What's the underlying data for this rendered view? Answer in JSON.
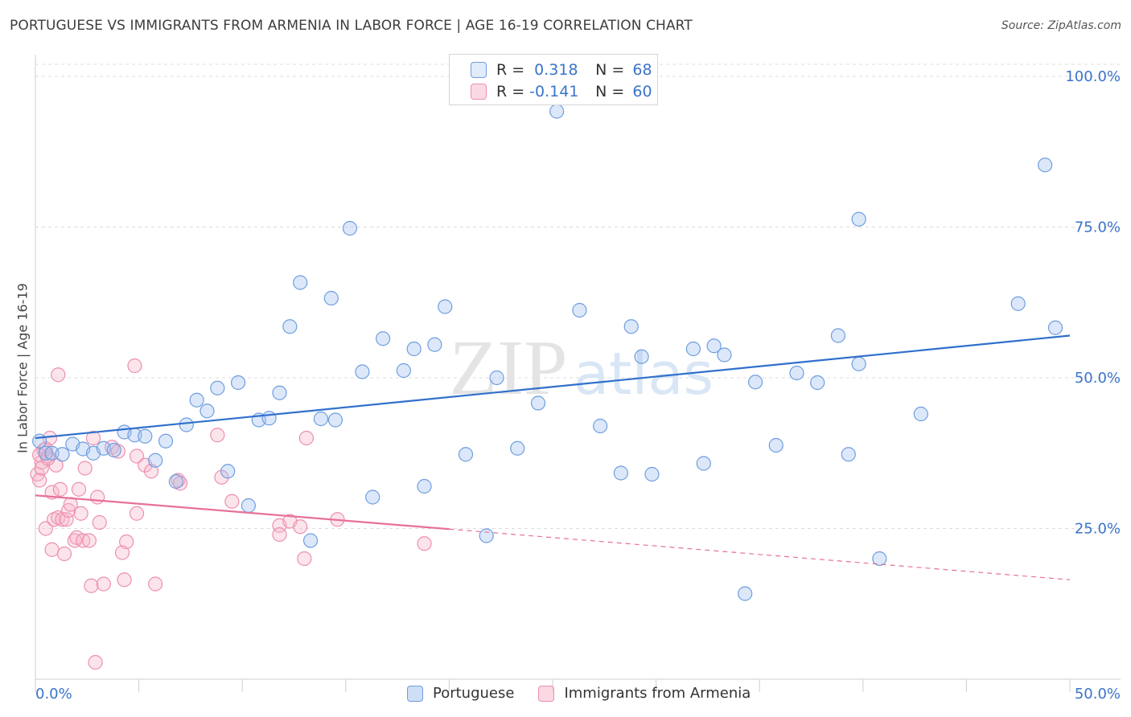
{
  "title": "PORTUGUESE VS IMMIGRANTS FROM ARMENIA IN LABOR FORCE | AGE 16-19 CORRELATION CHART",
  "source": "Source: ZipAtlas.com",
  "watermark": {
    "zip": "ZIP",
    "atlas": "atlas"
  },
  "legend": {
    "r_label": "R =",
    "n_label": "N =",
    "series": [
      {
        "name": "Portuguese",
        "r": "0.318",
        "n": "68",
        "color": "#a4c2ef",
        "stroke": "#6e9de0",
        "line": "#3070cc"
      },
      {
        "name": "Immigrants from Armenia",
        "r": "-0.141",
        "n": "60",
        "color": "#f7b8cb",
        "stroke": "#ec8fae",
        "line": "#e8709a"
      }
    ]
  },
  "chart_data": {
    "type": "scatter",
    "title": "PORTUGUESE VS IMMIGRANTS FROM ARMENIA IN LABOR FORCE | AGE 16-19 CORRELATION CHART",
    "xlabel": "",
    "ylabel": "In Labor Force | Age 16-19",
    "xlim": [
      0,
      50
    ],
    "ylim": [
      0,
      102
    ],
    "x_tick_labels": [
      "0.0%",
      "50.0%"
    ],
    "y_ticks": [
      25,
      50,
      75,
      100
    ],
    "y_tick_labels": [
      "25.0%",
      "50.0%",
      "75.0%",
      "100.0%"
    ],
    "grid": true,
    "series": [
      {
        "name": "Portuguese",
        "trend": {
          "x": [
            0,
            50
          ],
          "y": [
            40.0,
            57.0
          ],
          "dashed_from": null
        },
        "points": [
          [
            0.2,
            39.5
          ],
          [
            0.5,
            37.5
          ],
          [
            0.8,
            37.5
          ],
          [
            1.3,
            37.3
          ],
          [
            1.8,
            39.0
          ],
          [
            2.3,
            38.2
          ],
          [
            2.8,
            37.5
          ],
          [
            3.3,
            38.3
          ],
          [
            3.8,
            38.0
          ],
          [
            4.3,
            41.0
          ],
          [
            4.8,
            40.5
          ],
          [
            5.3,
            40.3
          ],
          [
            5.8,
            36.3
          ],
          [
            6.3,
            39.5
          ],
          [
            6.8,
            32.8
          ],
          [
            7.3,
            42.2
          ],
          [
            7.8,
            46.3
          ],
          [
            8.3,
            44.5
          ],
          [
            8.8,
            48.3
          ],
          [
            9.3,
            34.5
          ],
          [
            9.8,
            49.2
          ],
          [
            10.3,
            28.8
          ],
          [
            10.8,
            43.0
          ],
          [
            11.3,
            43.3
          ],
          [
            11.8,
            47.5
          ],
          [
            12.3,
            58.5
          ],
          [
            12.8,
            65.8
          ],
          [
            13.3,
            23.0
          ],
          [
            13.8,
            43.2
          ],
          [
            14.3,
            63.2
          ],
          [
            14.5,
            43.0
          ],
          [
            15.2,
            74.8
          ],
          [
            15.8,
            51.0
          ],
          [
            16.3,
            30.2
          ],
          [
            16.8,
            56.5
          ],
          [
            17.8,
            51.2
          ],
          [
            18.3,
            54.8
          ],
          [
            18.8,
            32.0
          ],
          [
            19.3,
            55.5
          ],
          [
            19.8,
            61.8
          ],
          [
            20.8,
            37.3
          ],
          [
            21.8,
            23.8
          ],
          [
            22.3,
            50.0
          ],
          [
            23.3,
            38.3
          ],
          [
            24.3,
            45.8
          ],
          [
            25.2,
            94.2
          ],
          [
            26.3,
            61.2
          ],
          [
            27.3,
            42.0
          ],
          [
            28.3,
            34.2
          ],
          [
            28.8,
            58.5
          ],
          [
            29.3,
            53.5
          ],
          [
            29.8,
            34.0
          ],
          [
            31.8,
            54.8
          ],
          [
            32.3,
            35.8
          ],
          [
            32.8,
            55.3
          ],
          [
            33.3,
            53.8
          ],
          [
            34.3,
            14.2
          ],
          [
            34.8,
            49.3
          ],
          [
            35.8,
            38.8
          ],
          [
            36.8,
            50.8
          ],
          [
            37.8,
            49.2
          ],
          [
            38.8,
            57.0
          ],
          [
            39.3,
            37.3
          ],
          [
            39.8,
            52.3
          ],
          [
            39.8,
            76.3
          ],
          [
            40.8,
            20.0
          ],
          [
            42.8,
            44.0
          ],
          [
            47.5,
            62.3
          ],
          [
            48.8,
            85.3
          ],
          [
            49.3,
            58.3
          ]
        ]
      },
      {
        "name": "Immigrants from Armenia",
        "trend": {
          "x": [
            0,
            50
          ],
          "y": [
            30.5,
            16.5
          ],
          "dashed_from": 20.0
        },
        "points": [
          [
            0.1,
            34.0
          ],
          [
            0.2,
            33.0
          ],
          [
            0.3,
            36.0
          ],
          [
            0.3,
            35.0
          ],
          [
            0.4,
            38.0
          ],
          [
            0.5,
            25.0
          ],
          [
            0.6,
            37.0
          ],
          [
            0.7,
            40.0
          ],
          [
            0.8,
            21.5
          ],
          [
            0.8,
            31.0
          ],
          [
            0.9,
            26.5
          ],
          [
            1.0,
            35.5
          ],
          [
            1.1,
            50.5
          ],
          [
            1.1,
            26.8
          ],
          [
            1.2,
            31.5
          ],
          [
            1.3,
            26.5
          ],
          [
            1.4,
            20.8
          ],
          [
            1.5,
            26.5
          ],
          [
            1.6,
            28.0
          ],
          [
            1.7,
            29.0
          ],
          [
            1.9,
            23.0
          ],
          [
            2.0,
            23.5
          ],
          [
            2.1,
            31.5
          ],
          [
            2.2,
            27.5
          ],
          [
            2.3,
            23.0
          ],
          [
            2.4,
            35.0
          ],
          [
            2.6,
            23.0
          ],
          [
            2.7,
            15.5
          ],
          [
            2.8,
            40.0
          ],
          [
            2.9,
            2.8
          ],
          [
            3.0,
            30.2
          ],
          [
            3.1,
            26.0
          ],
          [
            3.3,
            15.8
          ],
          [
            3.7,
            38.5
          ],
          [
            4.0,
            37.8
          ],
          [
            4.2,
            21.0
          ],
          [
            4.3,
            16.5
          ],
          [
            4.4,
            22.8
          ],
          [
            4.8,
            52.0
          ],
          [
            4.9,
            27.5
          ],
          [
            4.9,
            37.0
          ],
          [
            5.3,
            35.5
          ],
          [
            5.6,
            34.5
          ],
          [
            5.8,
            15.8
          ],
          [
            6.9,
            33.0
          ],
          [
            7.0,
            32.5
          ],
          [
            8.8,
            40.5
          ],
          [
            9.0,
            33.5
          ],
          [
            9.5,
            29.5
          ],
          [
            11.8,
            25.5
          ],
          [
            11.8,
            24.0
          ],
          [
            12.3,
            26.2
          ],
          [
            12.8,
            25.3
          ],
          [
            13.0,
            20.0
          ],
          [
            13.1,
            40.0
          ],
          [
            14.6,
            26.5
          ],
          [
            18.8,
            22.5
          ],
          [
            0.2,
            37.2
          ],
          [
            0.5,
            38.2
          ],
          [
            0.6,
            36.6
          ]
        ]
      }
    ]
  }
}
